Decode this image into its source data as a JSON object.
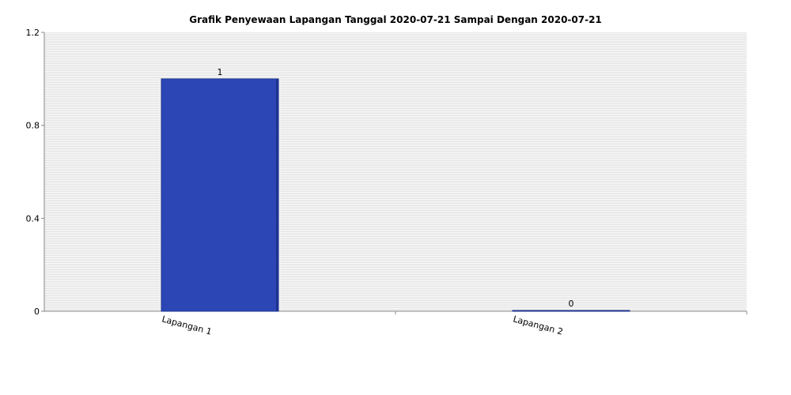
{
  "chart_data": {
    "type": "bar",
    "title": "Grafik Penyewaan Lapangan Tanggal 2020-07-21 Sampai Dengan 2020-07-21",
    "categories": [
      "Lapangan 1",
      "Lapangan 2"
    ],
    "values": [
      1,
      0
    ],
    "value_labels": [
      "1",
      "0"
    ],
    "ylim": [
      0,
      1.2
    ],
    "yticks": [
      0,
      0.4,
      0.8,
      1.2
    ],
    "ytick_labels": [
      "0",
      "0.4",
      "0.8",
      "1.2"
    ],
    "grid": true,
    "bar_color": "#2c47b5",
    "bar_edge_color": "#1d3390"
  }
}
